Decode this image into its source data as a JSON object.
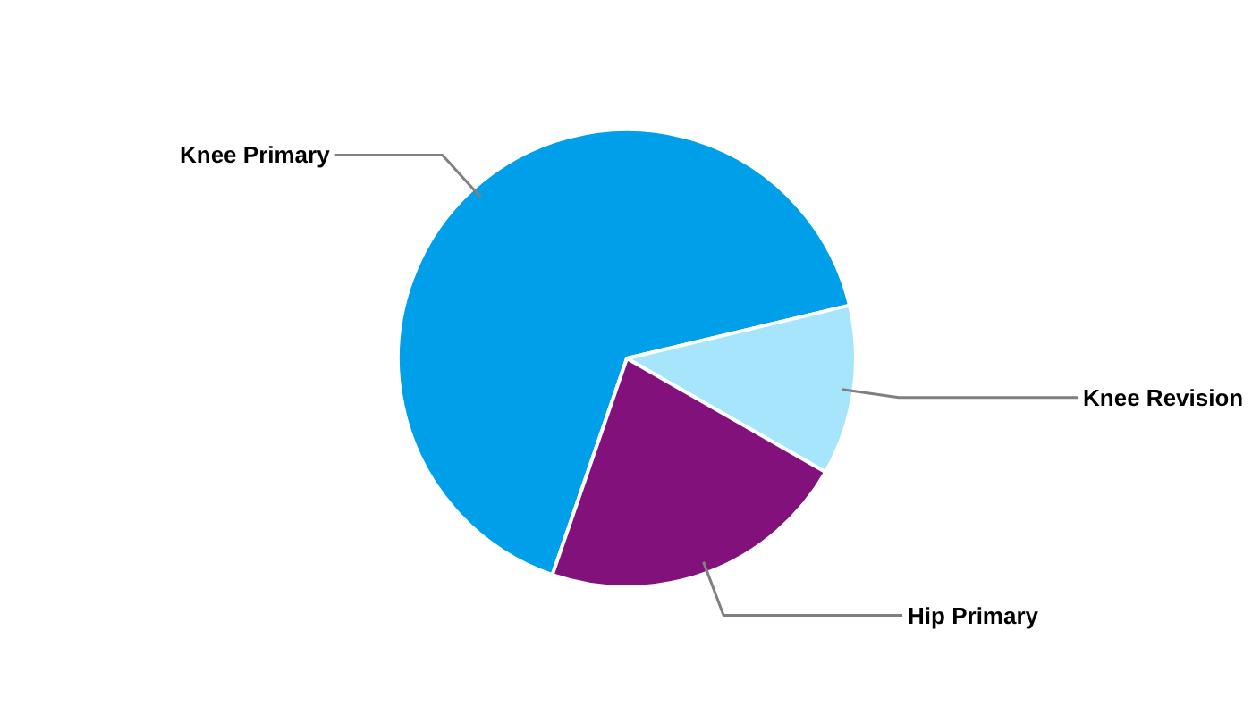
{
  "chart_data": {
    "type": "pie",
    "categories": [
      "Knee Primary",
      "Knee Revision",
      "Hip Primary"
    ],
    "values": [
      66,
      12,
      22
    ],
    "colors": [
      "#009fe9",
      "#a6e5fb",
      "#83117b"
    ]
  }
}
